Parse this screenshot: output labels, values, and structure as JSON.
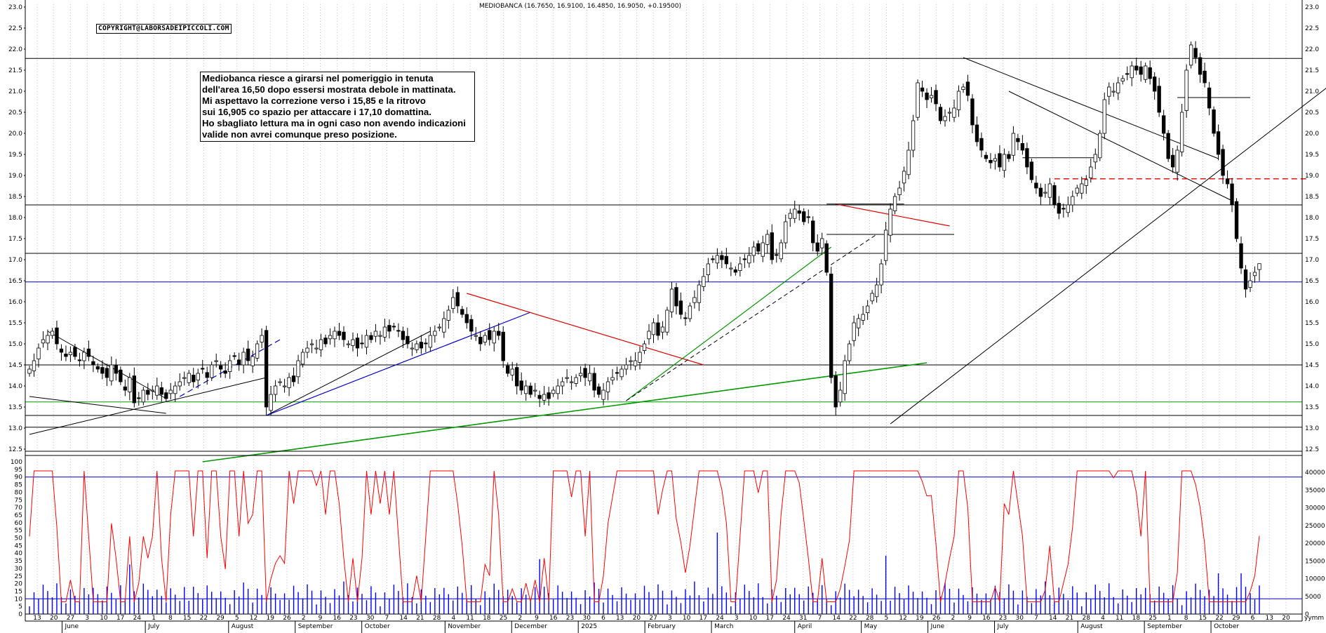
{
  "header": {
    "title": "MEDIOBANCA (16.7650, 16.9100, 16.4850, 16.9050, +0.19500)"
  },
  "copyright": "COPYRIGHT@LABORSADEIPICCOLI.COM",
  "comment_lines": [
    "Mediobanca riesce a girarsi nel pomeriggio in tenuta",
    "dell'area 16,50 dopo essersi mostrata debole in mattinata.",
    "Mi aspettavo la correzione verso i 15,85 e la ritrovo",
    "sui 16,905 co spazio per attaccare i 17,10 domattina.",
    "Ho sbagliato lettura ma in ogni caso non avendo indicazioni",
    "valide non avrei comunque preso posizione."
  ],
  "chart_data": [
    {
      "type": "candlestick",
      "series_name": "MEDIOBANCA",
      "last_bar": {
        "open": 16.765,
        "high": 16.91,
        "low": 16.485,
        "close": 16.905,
        "change": 0.195
      },
      "ylim": [
        12.5,
        23.0
      ],
      "y_ticks": [
        "12.5",
        "13.0",
        "13.5",
        "14.0",
        "14.5",
        "15.0",
        "15.5",
        "16.0",
        "16.5",
        "17.0",
        "17.5",
        "18.0",
        "18.5",
        "19.0",
        "19.5",
        "20.0",
        "20.5",
        "21.0",
        "21.5",
        "22.0",
        "22.5",
        "23.0"
      ],
      "horizontal_levels": [
        {
          "value": 21.78,
          "color": "#000000"
        },
        {
          "value": 18.3,
          "color": "#000000"
        },
        {
          "value": 17.15,
          "color": "#000000"
        },
        {
          "value": 16.47,
          "color": "#0000cc"
        },
        {
          "value": 14.5,
          "color": "#000000"
        },
        {
          "value": 13.62,
          "color": "#009900"
        },
        {
          "value": 13.3,
          "color": "#000000"
        },
        {
          "value": 13.02,
          "color": "#000000"
        }
      ],
      "closes": [
        14.4,
        14.6,
        14.9,
        15.1,
        15.2,
        15.3,
        15.0,
        14.8,
        14.7,
        14.8,
        14.7,
        14.6,
        14.8,
        14.7,
        14.5,
        14.4,
        14.3,
        14.2,
        14.5,
        14.3,
        14.1,
        13.9,
        14.2,
        13.6,
        13.7,
        13.9,
        13.8,
        13.9,
        14.0,
        13.8,
        13.7,
        13.9,
        14.0,
        14.1,
        14.2,
        14.3,
        14.1,
        14.3,
        14.4,
        14.2,
        14.5,
        14.6,
        14.4,
        14.3,
        14.6,
        14.7,
        14.5,
        14.8,
        14.6,
        14.7,
        15.0,
        15.2,
        13.5,
        13.8,
        14.0,
        14.1,
        14.0,
        14.2,
        14.1,
        14.6,
        14.8,
        14.9,
        15.0,
        14.9,
        15.1,
        15.0,
        15.2,
        15.3,
        15.2,
        15.1,
        15.0,
        15.1,
        14.9,
        15.0,
        15.2,
        15.1,
        15.3,
        15.2,
        15.4,
        15.3,
        15.4,
        15.3,
        15.1,
        15.0,
        14.9,
        15.0,
        14.9,
        15.0,
        15.2,
        15.3,
        15.4,
        15.6,
        15.8,
        16.1,
        15.9,
        15.7,
        15.5,
        15.3,
        15.2,
        15.0,
        15.2,
        15.1,
        15.3,
        15.2,
        14.6,
        14.3,
        14.4,
        14.0,
        13.9,
        14.0,
        13.8,
        13.9,
        13.7,
        13.8,
        13.7,
        13.9,
        14.0,
        14.1,
        14.2,
        14.1,
        14.2,
        14.3,
        14.2,
        14.3,
        13.9,
        13.8,
        13.9,
        14.1,
        14.2,
        14.3,
        14.4,
        14.5,
        14.6,
        14.6,
        14.8,
        15.0,
        15.3,
        15.5,
        15.2,
        15.4,
        15.8,
        16.3,
        15.9,
        15.7,
        15.6,
        15.9,
        16.1,
        16.4,
        16.6,
        16.9,
        17.0,
        17.1,
        17.0,
        16.9,
        16.8,
        16.7,
        16.9,
        17.0,
        17.1,
        17.3,
        17.2,
        17.4,
        17.6,
        17.0,
        17.1,
        17.4,
        17.9,
        18.1,
        18.2,
        18.1,
        17.9,
        18.0,
        17.4,
        17.2,
        17.5,
        16.7,
        14.2,
        13.5,
        13.9,
        14.6,
        15.0,
        15.5,
        15.6,
        15.7,
        15.9,
        16.2,
        16.4,
        16.9,
        17.7,
        18.2,
        18.5,
        18.7,
        19.1,
        19.6,
        20.3,
        21.2,
        21.0,
        20.8,
        20.9,
        20.7,
        20.3,
        20.4,
        20.5,
        20.6,
        21.0,
        21.1,
        20.9,
        20.2,
        19.8,
        19.6,
        19.4,
        19.3,
        19.4,
        19.2,
        19.5,
        19.4,
        20.0,
        19.8,
        19.6,
        19.2,
        18.9,
        18.7,
        18.5,
        18.6,
        18.8,
        18.3,
        18.1,
        18.2,
        18.3,
        18.5,
        18.7,
        18.8,
        18.9,
        19.2,
        19.5,
        20.0,
        20.8,
        21.1,
        21.0,
        21.2,
        21.3,
        21.4,
        21.6,
        21.5,
        21.4,
        21.6,
        21.3,
        21.0,
        20.5,
        20.0,
        19.4,
        19.2,
        19.6,
        20.5,
        21.5,
        22.1,
        21.8,
        21.4,
        21.2,
        20.6,
        20.0,
        19.5,
        19.0,
        18.8,
        18.3,
        17.5,
        16.8,
        16.3,
        16.5,
        16.7,
        16.905
      ]
    },
    {
      "type": "line+bar",
      "oscillator": {
        "color": "#ff0000",
        "ylim": [
          0,
          100
        ]
      },
      "volume": {
        "color": "#0000ff",
        "ylim": [
          0,
          43000
        ]
      },
      "left_ticks": [
        "0",
        "5",
        "10",
        "15",
        "20",
        "25",
        "30",
        "35",
        "40",
        "45",
        "50",
        "55",
        "60",
        "65",
        "70",
        "75",
        "80",
        "85",
        "90",
        "95",
        "100"
      ],
      "right_ticks": [
        "0",
        "5000",
        "10000",
        "15000",
        "20000",
        "25000",
        "30000",
        "35000",
        "40000"
      ],
      "levels": [
        10,
        90
      ]
    }
  ],
  "x_axis": {
    "day_labels": [
      "13",
      "20",
      "27",
      "3",
      "10",
      "17",
      "24",
      "1",
      "8",
      "15",
      "22",
      "29",
      "5",
      "12",
      "19",
      "26",
      "2",
      "9",
      "16",
      "23",
      "30",
      "7",
      "14",
      "21",
      "28",
      "4",
      "11",
      "18",
      "25",
      "2",
      "9",
      "16",
      "23",
      "30",
      "6",
      "13",
      "20",
      "27",
      "3",
      "10",
      "17",
      "24",
      "3",
      "10",
      "17",
      "24",
      "31",
      "7",
      "14",
      "22",
      "28",
      "5",
      "12",
      "19",
      "26",
      "2",
      "9",
      "16",
      "23",
      "30",
      "7",
      "14",
      "21",
      "28",
      "4",
      "11",
      "18",
      "25",
      "1",
      "8",
      "15",
      "22",
      "29",
      "6",
      "13",
      "20"
    ],
    "month_labels": [
      {
        "label": "June",
        "day_index": 2
      },
      {
        "label": "July",
        "day_index": 7
      },
      {
        "label": "August",
        "day_index": 12
      },
      {
        "label": "September",
        "day_index": 16
      },
      {
        "label": "October",
        "day_index": 20
      },
      {
        "label": "November",
        "day_index": 25
      },
      {
        "label": "December",
        "day_index": 29
      },
      {
        "label": "2025",
        "day_index": 33
      },
      {
        "label": "February",
        "day_index": 37
      },
      {
        "label": "March",
        "day_index": 41
      },
      {
        "label": "April",
        "day_index": 46
      },
      {
        "label": "May",
        "day_index": 50
      },
      {
        "label": "June",
        "day_index": 54
      },
      {
        "label": "July",
        "day_index": 58
      },
      {
        "label": "August",
        "day_index": 63
      },
      {
        "label": "September",
        "day_index": 67
      },
      {
        "label": "October",
        "day_index": 71
      }
    ],
    "corner_label": "yymm"
  }
}
